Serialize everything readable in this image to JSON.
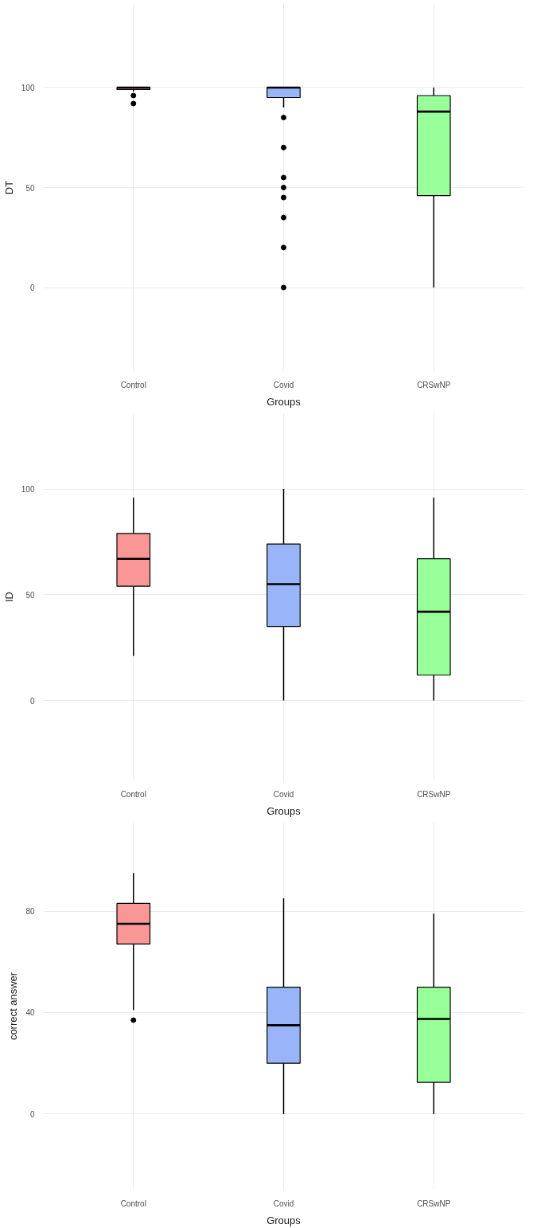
{
  "chart_data": [
    {
      "type": "box",
      "categories": [
        "Control",
        "Covid",
        "CRSwNP"
      ],
      "xlabel": "Groups",
      "ylabel": "DT",
      "ylim": [
        -42,
        142
      ],
      "yticks": [
        0,
        50,
        100
      ],
      "grid": true,
      "colors": [
        "#f99797",
        "#9ab4fa",
        "#99ff99"
      ],
      "boxes": [
        {
          "low": 98,
          "q1": 99,
          "median": 100,
          "q3": 100,
          "high": 100,
          "outliers": [
            96,
            92
          ]
        },
        {
          "low": 90,
          "q1": 95,
          "median": 100,
          "q3": 100,
          "high": 100,
          "outliers": [
            85,
            70,
            55,
            50,
            45,
            35,
            20,
            0
          ]
        },
        {
          "low": 0,
          "q1": 46,
          "median": 88,
          "q3": 96,
          "high": 100
        }
      ]
    },
    {
      "type": "box",
      "categories": [
        "Control",
        "Covid",
        "CRSwNP"
      ],
      "xlabel": "Groups",
      "ylabel": "ID",
      "ylim": [
        -38,
        136
      ],
      "yticks": [
        0,
        50,
        100
      ],
      "grid": true,
      "colors": [
        "#f99797",
        "#9ab4fa",
        "#99ff99"
      ],
      "boxes": [
        {
          "low": 21,
          "q1": 54,
          "median": 67,
          "q3": 79,
          "high": 96
        },
        {
          "low": 0,
          "q1": 35,
          "median": 55,
          "q3": 74,
          "high": 100
        },
        {
          "low": 0,
          "q1": 12,
          "median": 42,
          "q3": 67,
          "high": 96
        }
      ]
    },
    {
      "type": "box",
      "categories": [
        "Control",
        "Covid",
        "CRSwNP"
      ],
      "xlabel": "Groups",
      "ylabel": "correct answer",
      "ylim": [
        -30,
        115
      ],
      "yticks": [
        0,
        40,
        80
      ],
      "grid": true,
      "colors": [
        "#f99797",
        "#9ab4fa",
        "#99ff99"
      ],
      "boxes": [
        {
          "low": 41,
          "q1": 67,
          "median": 75,
          "q3": 83,
          "high": 95,
          "outliers": [
            37
          ]
        },
        {
          "low": 0,
          "q1": 20,
          "median": 35,
          "q3": 50,
          "high": 85
        },
        {
          "low": 0,
          "q1": 12.5,
          "median": 37.5,
          "q3": 50,
          "high": 79
        }
      ]
    }
  ]
}
